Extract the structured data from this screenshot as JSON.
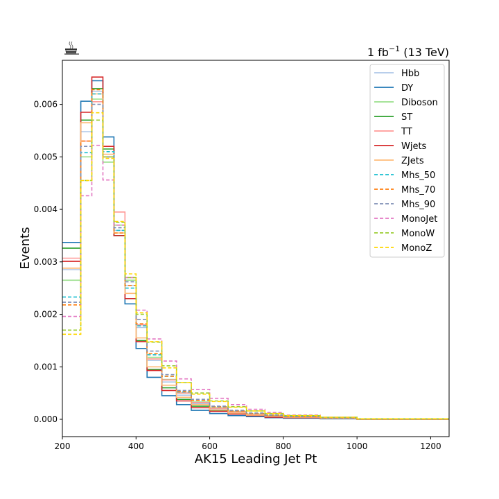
{
  "chart_data": {
    "type": "line",
    "title": "",
    "lumi_label": "1 fb",
    "lumi_exponent": "−1",
    "lumi_suffix": " (13 TeV)",
    "logo_icon": "coffee-cup-icon",
    "xlabel": "AK15 Leading Jet Pt",
    "ylabel": "Events",
    "xlim": [
      200,
      1250
    ],
    "ylim": [
      -0.00033,
      0.00684
    ],
    "xticks": [
      200,
      400,
      600,
      800,
      1000,
      1200
    ],
    "yticks": [
      0.0,
      0.001,
      0.002,
      0.003,
      0.004,
      0.005,
      0.006
    ],
    "ytick_labels": [
      "0.000",
      "0.001",
      "0.002",
      "0.003",
      "0.004",
      "0.005",
      "0.006"
    ],
    "xtick_labels": [
      "200",
      "400",
      "600",
      "800",
      "1000",
      "1200"
    ],
    "grid": false,
    "legend_position": "top-right",
    "bin_edges": [
      200,
      250,
      280,
      310,
      340,
      370,
      400,
      430,
      470,
      510,
      550,
      600,
      650,
      700,
      750,
      800,
      900,
      1000,
      1250
    ],
    "series": [
      {
        "name": "Hbb",
        "color": "#aec7e8",
        "dashed": false,
        "values": [
          0.00285,
          0.00548,
          0.00625,
          0.005,
          0.0036,
          0.00255,
          0.00175,
          0.00112,
          0.00071,
          0.00046,
          0.0003,
          0.0002,
          0.00014,
          9e-05,
          6e-05,
          4e-05,
          2e-05,
          0.0
        ]
      },
      {
        "name": "DY",
        "color": "#1f77b4",
        "dashed": false,
        "values": [
          0.00337,
          0.00606,
          0.00645,
          0.00538,
          0.0035,
          0.0022,
          0.00135,
          0.0008,
          0.00045,
          0.00028,
          0.00017,
          0.00011,
          7e-05,
          5e-05,
          3e-05,
          2e-05,
          1e-05,
          0.0
        ]
      },
      {
        "name": "Diboson",
        "color": "#98df8a",
        "dashed": false,
        "values": [
          0.00265,
          0.005,
          0.0061,
          0.0049,
          0.0037,
          0.00265,
          0.0018,
          0.00118,
          0.00076,
          0.0005,
          0.00033,
          0.00022,
          0.00015,
          0.0001,
          7e-05,
          5e-05,
          3e-05,
          1e-05
        ]
      },
      {
        "name": "ST",
        "color": "#2ca02c",
        "dashed": false,
        "values": [
          0.00326,
          0.0057,
          0.0063,
          0.00515,
          0.0035,
          0.0023,
          0.0015,
          0.00095,
          0.0006,
          0.00038,
          0.00025,
          0.00016,
          0.00011,
          7e-05,
          5e-05,
          3e-05,
          2e-05,
          0.0
        ]
      },
      {
        "name": "TT",
        "color": "#ff9896",
        "dashed": false,
        "values": [
          0.00307,
          0.0053,
          0.00605,
          0.005,
          0.00395,
          0.0027,
          0.0018,
          0.00115,
          0.00075,
          0.0005,
          0.00032,
          0.00021,
          0.00014,
          9e-05,
          6e-05,
          4e-05,
          2e-05,
          1e-05
        ]
      },
      {
        "name": "Wjets",
        "color": "#d62728",
        "dashed": false,
        "values": [
          0.00301,
          0.00585,
          0.00652,
          0.0052,
          0.0035,
          0.0023,
          0.00148,
          0.00093,
          0.00055,
          0.00035,
          0.00022,
          0.00015,
          0.0001,
          7e-05,
          4e-05,
          3e-05,
          2e-05,
          0.0
        ]
      },
      {
        "name": "ZJets",
        "color": "#ffbb78",
        "dashed": false,
        "values": [
          0.00288,
          0.00565,
          0.0062,
          0.00505,
          0.00355,
          0.0024,
          0.00155,
          0.001,
          0.00065,
          0.00042,
          0.00028,
          0.00018,
          0.00012,
          8e-05,
          6e-05,
          4e-05,
          2e-05,
          0.0
        ]
      },
      {
        "name": "Mhs_50",
        "color": "#17becf",
        "dashed": true,
        "values": [
          0.00233,
          0.00508,
          0.0062,
          0.0051,
          0.0036,
          0.0025,
          0.00178,
          0.00123,
          0.00082,
          0.00052,
          0.00036,
          0.00024,
          0.00016,
          0.00011,
          8e-05,
          5e-05,
          3e-05,
          1e-05
        ]
      },
      {
        "name": "Mhs_70",
        "color": "#ff7f0e",
        "dashed": true,
        "values": [
          0.00218,
          0.0053,
          0.00628,
          0.005,
          0.00355,
          0.00255,
          0.00182,
          0.00125,
          0.00082,
          0.00053,
          0.00036,
          0.00024,
          0.00016,
          0.00011,
          8e-05,
          5e-05,
          3e-05,
          1e-05
        ]
      },
      {
        "name": "Mhs_90",
        "color": "#7f8fb5",
        "dashed": true,
        "values": [
          0.00223,
          0.0052,
          0.006,
          0.005,
          0.00365,
          0.00262,
          0.0019,
          0.0013,
          0.00085,
          0.00055,
          0.00038,
          0.00025,
          0.00017,
          0.00012,
          8e-05,
          5e-05,
          3e-05,
          1e-05
        ]
      },
      {
        "name": "MonoJet",
        "color": "#e377c2",
        "dashed": true,
        "values": [
          0.00196,
          0.00426,
          0.00522,
          0.00456,
          0.0037,
          0.0027,
          0.00208,
          0.00153,
          0.00111,
          0.00077,
          0.00057,
          0.0004,
          0.00028,
          0.00019,
          0.00013,
          8e-05,
          4e-05,
          1e-05
        ]
      },
      {
        "name": "MonoW",
        "color": "#9acd32",
        "dashed": true,
        "values": [
          0.0017,
          0.00455,
          0.0057,
          0.005,
          0.00375,
          0.0027,
          0.002,
          0.00147,
          0.00102,
          0.0007,
          0.0005,
          0.00035,
          0.00024,
          0.00016,
          0.00011,
          7e-05,
          4e-05,
          1e-05
        ]
      },
      {
        "name": "MonoZ",
        "color": "#ffd700",
        "dashed": true,
        "values": [
          0.00162,
          0.00455,
          0.00584,
          0.00497,
          0.00377,
          0.00277,
          0.00203,
          0.00148,
          0.00098,
          0.0007,
          0.00048,
          0.00034,
          0.00023,
          0.00016,
          0.00011,
          7e-05,
          4e-05,
          1e-05
        ]
      }
    ]
  }
}
